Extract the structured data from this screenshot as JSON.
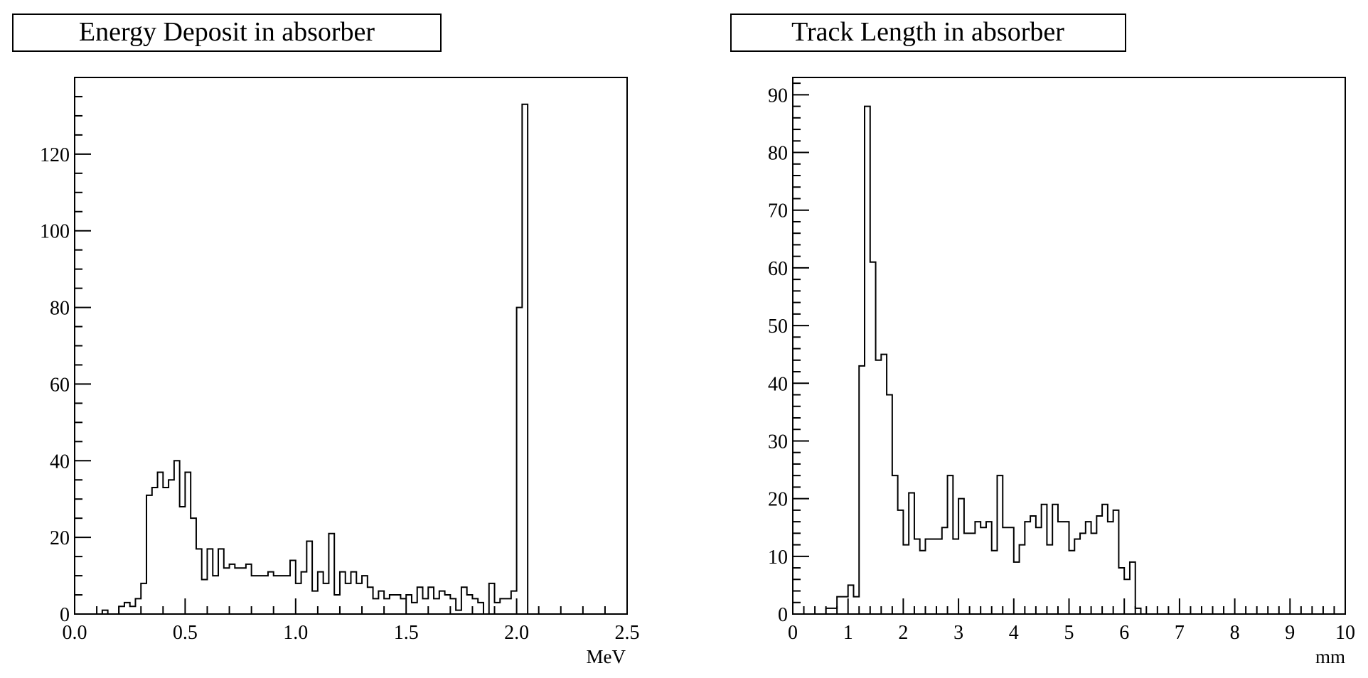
{
  "chart_data": [
    {
      "type": "histogram",
      "title": "Energy Deposit in absorber",
      "xlabel": "MeV",
      "ylabel": "",
      "xlim": [
        0.0,
        2.5
      ],
      "ylim": [
        0,
        140
      ],
      "grid": false,
      "x_ticks": [
        "0.0",
        "0.5",
        "1.0",
        "1.5",
        "2.0",
        "2.5"
      ],
      "y_ticks": [
        "0",
        "20",
        "40",
        "60",
        "80",
        "100",
        "120"
      ],
      "bins": [
        0.0,
        0.025,
        0.05,
        0.075,
        0.1,
        0.125,
        0.15,
        0.175,
        0.2,
        0.225,
        0.25,
        0.275,
        0.3,
        0.325,
        0.35,
        0.375,
        0.4,
        0.425,
        0.45,
        0.475,
        0.5,
        0.525,
        0.55,
        0.575,
        0.6,
        0.625,
        0.65,
        0.675,
        0.7,
        0.725,
        0.75,
        0.775,
        0.8,
        0.825,
        0.85,
        0.875,
        0.9,
        0.925,
        0.95,
        0.975,
        1.0,
        1.025,
        1.05,
        1.075,
        1.1,
        1.125,
        1.15,
        1.175,
        1.2,
        1.225,
        1.25,
        1.275,
        1.3,
        1.325,
        1.35,
        1.375,
        1.4,
        1.425,
        1.45,
        1.475,
        1.5,
        1.525,
        1.55,
        1.575,
        1.6,
        1.625,
        1.65,
        1.675,
        1.7,
        1.725,
        1.75,
        1.775,
        1.8,
        1.825,
        1.85,
        1.875,
        1.9,
        1.925,
        1.95,
        1.975,
        2.0,
        2.025,
        2.05,
        2.075,
        2.1,
        2.125,
        2.15,
        2.175,
        2.2,
        2.225,
        2.25,
        2.275,
        2.3,
        2.325,
        2.35,
        2.375,
        2.4,
        2.425,
        2.45,
        2.475,
        2.5
      ],
      "counts": [
        0,
        0,
        0,
        0,
        0,
        1,
        0,
        0,
        2,
        3,
        2,
        4,
        8,
        31,
        33,
        37,
        33,
        35,
        40,
        28,
        37,
        25,
        17,
        9,
        17,
        10,
        17,
        12,
        13,
        12,
        12,
        13,
        10,
        10,
        10,
        11,
        10,
        10,
        10,
        14,
        8,
        11,
        19,
        6,
        11,
        8,
        21,
        5,
        11,
        8,
        11,
        8,
        10,
        7,
        4,
        6,
        4,
        5,
        5,
        4,
        5,
        3,
        7,
        4,
        7,
        4,
        6,
        5,
        4,
        1,
        7,
        5,
        4,
        3,
        0,
        8,
        3,
        4,
        4,
        6,
        80,
        133,
        0,
        0,
        0,
        0,
        0,
        0,
        0,
        0,
        0,
        0,
        0,
        0,
        0,
        0,
        0,
        0,
        0,
        0
      ]
    },
    {
      "type": "histogram",
      "title": "Track Length in absorber",
      "xlabel": "mm",
      "ylabel": "",
      "xlim": [
        0,
        10
      ],
      "ylim": [
        0,
        93
      ],
      "grid": false,
      "x_ticks": [
        "0",
        "1",
        "2",
        "3",
        "4",
        "5",
        "6",
        "7",
        "8",
        "9",
        "10"
      ],
      "y_ticks": [
        "0",
        "10",
        "20",
        "30",
        "40",
        "50",
        "60",
        "70",
        "80",
        "90"
      ],
      "bins": [
        0.0,
        0.1,
        0.2,
        0.3,
        0.4,
        0.5,
        0.6,
        0.7,
        0.8,
        0.9,
        1.0,
        1.1,
        1.2,
        1.3,
        1.4,
        1.5,
        1.6,
        1.7,
        1.8,
        1.9,
        2.0,
        2.1,
        2.2,
        2.3,
        2.4,
        2.5,
        2.6,
        2.7,
        2.8,
        2.9,
        3.0,
        3.1,
        3.2,
        3.3,
        3.4,
        3.5,
        3.6,
        3.7,
        3.8,
        3.9,
        4.0,
        4.1,
        4.2,
        4.3,
        4.4,
        4.5,
        4.6,
        4.7,
        4.8,
        4.9,
        5.0,
        5.1,
        5.2,
        5.3,
        5.4,
        5.5,
        5.6,
        5.7,
        5.8,
        5.9,
        6.0,
        6.1,
        6.2,
        6.3,
        6.4,
        6.5,
        6.6,
        6.7,
        6.8,
        6.9,
        7.0,
        7.1,
        7.2,
        7.3,
        7.4,
        7.5,
        7.6,
        7.7,
        7.8,
        7.9,
        8.0,
        8.1,
        8.2,
        8.3,
        8.4,
        8.5,
        8.6,
        8.7,
        8.8,
        8.9,
        9.0,
        9.1,
        9.2,
        9.3,
        9.4,
        9.5,
        9.6,
        9.7,
        9.8,
        9.9,
        10.0
      ],
      "counts": [
        0,
        0,
        0,
        0,
        0,
        0,
        1,
        1,
        3,
        3,
        5,
        3,
        43,
        88,
        61,
        44,
        45,
        38,
        24,
        18,
        12,
        21,
        13,
        11,
        13,
        13,
        13,
        15,
        24,
        13,
        20,
        14,
        14,
        16,
        15,
        16,
        11,
        24,
        15,
        15,
        9,
        12,
        16,
        17,
        15,
        19,
        12,
        19,
        16,
        16,
        11,
        13,
        14,
        16,
        14,
        17,
        19,
        16,
        18,
        8,
        6,
        9,
        1,
        0,
        0,
        0,
        0,
        0,
        0,
        0,
        0,
        0,
        0,
        0,
        0,
        0,
        0,
        0,
        0,
        0,
        0,
        0,
        0,
        0,
        0,
        0,
        0,
        0,
        0,
        0,
        0,
        0,
        0,
        0,
        0,
        0,
        0,
        0,
        0,
        0
      ]
    }
  ]
}
